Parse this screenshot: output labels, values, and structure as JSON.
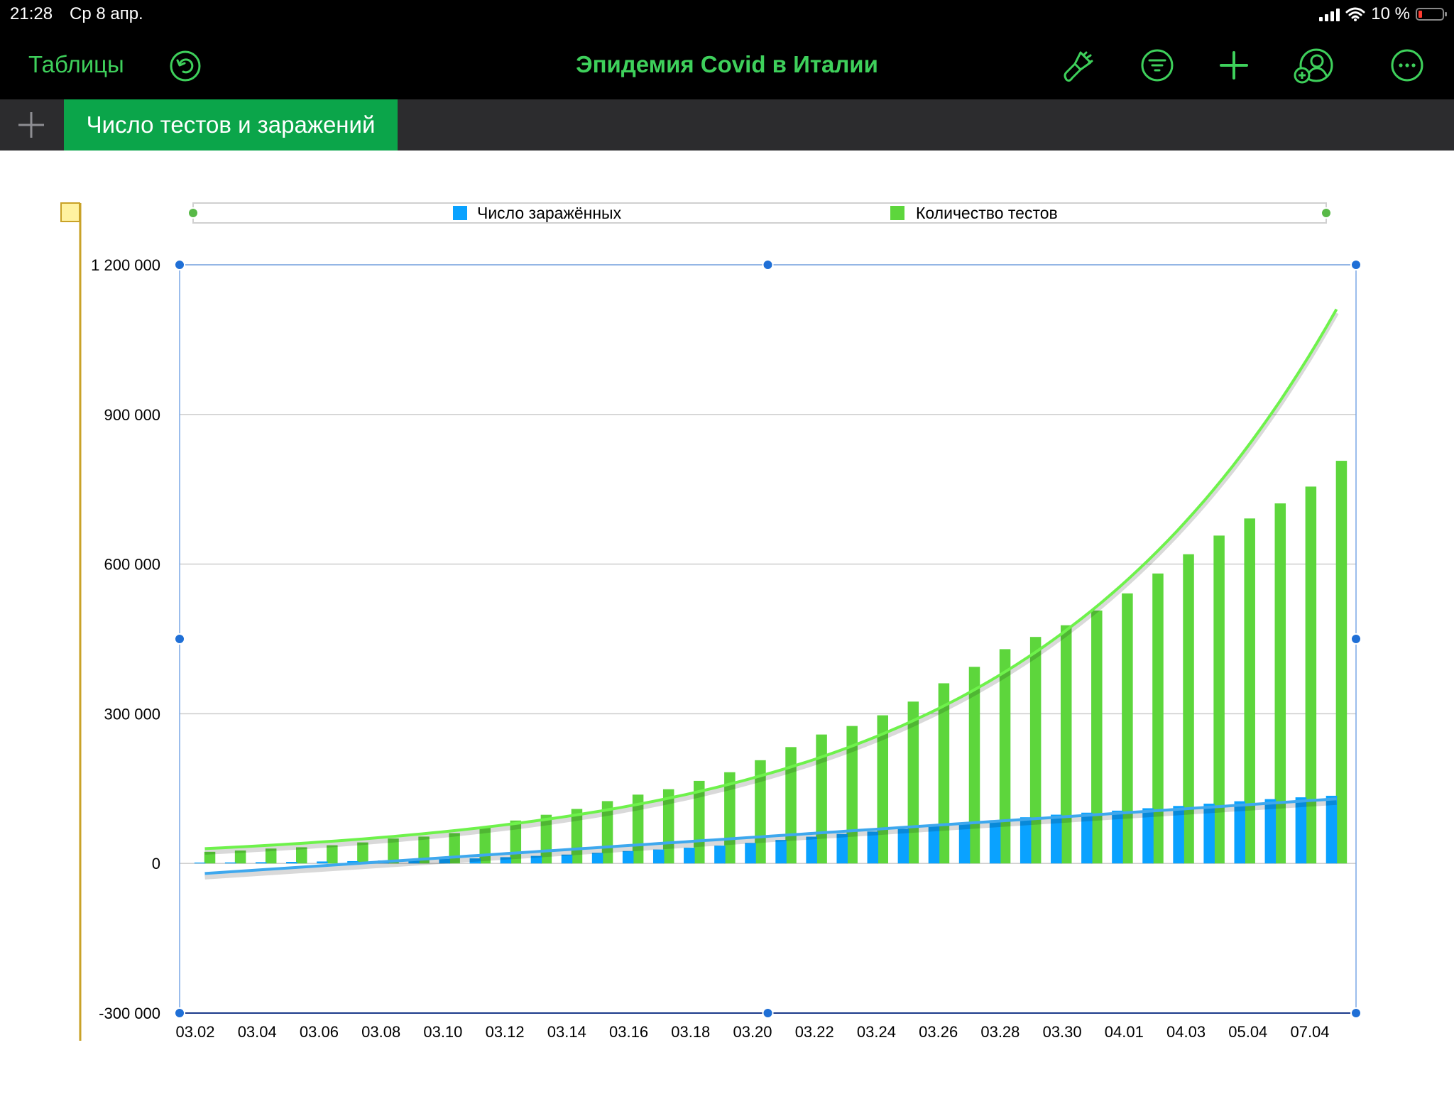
{
  "status_bar": {
    "time": "21:28",
    "date": "Ср 8 апр.",
    "battery": "10 %"
  },
  "toolbar": {
    "back_label": "Таблицы",
    "document_title": "Эпидемия Covid в Италии",
    "icons": [
      "undo-icon",
      "format-brush-icon",
      "filter-icon",
      "plus-icon",
      "collaborate-icon",
      "more-icon"
    ]
  },
  "sheets": {
    "add_label": "+",
    "active_tab": "Число тестов и заражений"
  },
  "colors": {
    "accent": "#3ed05b",
    "tab_active": "#0ba54a",
    "tests": "#5dd63c",
    "infected": "#0aa2ff",
    "trend_tests": "#6ef24b",
    "trend_infected": "#3ea8ee",
    "selection": "#1f6fd6"
  },
  "chart_data": {
    "type": "bar",
    "title": "",
    "xlabel": "",
    "ylabel": "",
    "ylim": [
      -300000,
      1200000
    ],
    "y_ticks": [
      1200000,
      900000,
      600000,
      300000,
      0,
      -300000
    ],
    "y_tick_labels": [
      "1 200 000",
      "900 000",
      "600 000",
      "300 000",
      "0",
      "-300 000"
    ],
    "grid": true,
    "legend_position": "top",
    "x_tick_labels": [
      "03.02",
      "03.04",
      "03.06",
      "03.08",
      "03.10",
      "03.12",
      "03.14",
      "03.16",
      "03.18",
      "03.20",
      "03.22",
      "03.24",
      "03.26",
      "03.28",
      "03.30",
      "04.01",
      "04.03",
      "05.04",
      "07.04"
    ],
    "series": [
      {
        "name": "Число заражённых",
        "color": "#0aa2ff",
        "values": [
          1700,
          2000,
          2500,
          3100,
          3900,
          4600,
          5900,
          7400,
          9200,
          10100,
          12500,
          15100,
          17700,
          21200,
          24800,
          27900,
          31500,
          35700,
          41000,
          47000,
          53600,
          59100,
          63900,
          69200,
          74400,
          80500,
          86500,
          92500,
          97700,
          101700,
          105800,
          110600,
          115200,
          119800,
          124600,
          128900,
          132500,
          135600
        ]
      },
      {
        "name": "Количество тестов",
        "color": "#5dd63c",
        "values": [
          23300,
          25900,
          29800,
          32400,
          36400,
          42100,
          49900,
          53800,
          60800,
          73200,
          86000,
          97500,
          109200,
          124900,
          137900,
          148700,
          165500,
          182800,
          206900,
          233200,
          258400,
          275500,
          296900,
          324400,
          361100,
          394100,
          429500,
          454000,
          477400,
          506900,
          541300,
          581200,
          619800,
          657200,
          691500,
          721700,
          755400,
          807100
        ]
      }
    ],
    "trendlines": [
      {
        "series": "Число заражённых",
        "type": "linear"
      },
      {
        "series": "Количество тестов",
        "type": "exponential"
      }
    ]
  }
}
